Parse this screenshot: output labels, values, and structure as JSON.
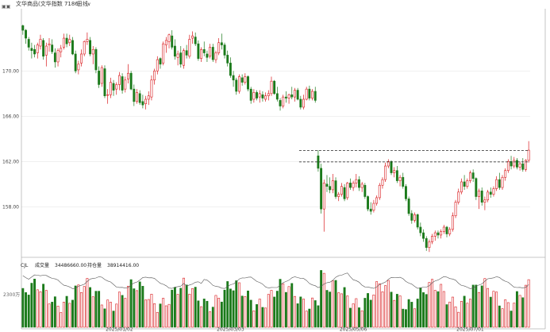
{
  "toolbar": {
    "app_icon": "chart-icon",
    "title": "文华商品(文华指数 7186)",
    "period": "日线",
    "period_icon": "chevron-down-icon"
  },
  "colors": {
    "up": "#d9191c",
    "down": "#1b7a1b",
    "grid": "#e6e6e6",
    "border": "#b5b5b5",
    "resistance": "#222222",
    "volume_avg": "#555555"
  },
  "chart_data": {
    "type": "candlestick",
    "title": "文华商品(文华指数 7186)",
    "period": "日线",
    "y_ticks": [
      "170.00",
      "166.00",
      "162.00",
      "158.00"
    ],
    "y_tick_values": [
      170,
      166,
      162,
      158
    ],
    "ylim": [
      153.6,
      175.5
    ],
    "x_ticks": [
      "2025/01/02",
      "2025/03/03",
      "2025/05/06",
      "2025/07/01"
    ],
    "grid": true,
    "resistance_levels": [
      162.98,
      161.96
    ],
    "candles": [
      [
        174.0,
        174.1,
        173.2,
        173.6
      ],
      [
        173.6,
        173.7,
        172.4,
        172.9
      ],
      [
        172.8,
        173.0,
        171.8,
        172.1
      ],
      [
        172.0,
        172.5,
        171.1,
        171.8
      ],
      [
        171.9,
        172.3,
        171.2,
        171.5
      ],
      [
        171.6,
        172.5,
        171.1,
        172.3
      ],
      [
        172.2,
        173.2,
        171.9,
        172.8
      ],
      [
        172.7,
        172.9,
        171.0,
        171.3
      ],
      [
        171.4,
        172.5,
        170.4,
        172.2
      ],
      [
        172.3,
        172.9,
        171.7,
        172.4
      ],
      [
        172.3,
        172.8,
        171.5,
        171.7
      ],
      [
        171.6,
        172.0,
        170.3,
        170.8
      ],
      [
        170.8,
        172.0,
        170.4,
        171.8
      ],
      [
        171.7,
        172.3,
        171.2,
        172.0
      ],
      [
        172.1,
        173.3,
        171.9,
        172.9
      ],
      [
        172.9,
        173.3,
        172.1,
        172.4
      ],
      [
        172.5,
        173.2,
        172.2,
        172.8
      ],
      [
        172.7,
        173.0,
        171.4,
        171.5
      ],
      [
        171.5,
        171.8,
        169.8,
        170.0
      ],
      [
        170.1,
        170.9,
        169.7,
        170.6
      ],
      [
        170.7,
        171.9,
        170.4,
        171.5
      ],
      [
        171.5,
        172.7,
        171.3,
        172.6
      ],
      [
        172.6,
        173.4,
        172.3,
        172.8
      ],
      [
        172.7,
        173.0,
        171.3,
        171.5
      ],
      [
        171.5,
        172.2,
        170.6,
        171.9
      ],
      [
        171.9,
        172.1,
        169.8,
        170.1
      ],
      [
        170.0,
        170.4,
        168.5,
        168.8
      ],
      [
        168.9,
        170.5,
        168.6,
        170.3
      ],
      [
        170.2,
        170.5,
        167.6,
        167.8
      ],
      [
        167.9,
        168.4,
        167.1,
        167.9
      ],
      [
        167.9,
        169.4,
        167.6,
        169.0
      ],
      [
        168.9,
        169.2,
        167.8,
        168.3
      ],
      [
        168.4,
        169.0,
        167.9,
        168.8
      ],
      [
        168.8,
        169.9,
        168.3,
        169.6
      ],
      [
        169.5,
        169.8,
        168.0,
        168.3
      ],
      [
        168.4,
        169.5,
        168.1,
        169.2
      ],
      [
        169.3,
        170.6,
        168.9,
        169.8
      ],
      [
        169.8,
        170.0,
        168.3,
        168.4
      ],
      [
        168.4,
        168.8,
        166.9,
        167.3
      ],
      [
        167.3,
        168.4,
        167.1,
        168.1
      ],
      [
        168.0,
        168.3,
        167.0,
        167.2
      ],
      [
        167.3,
        167.9,
        166.7,
        167.0
      ],
      [
        167.1,
        167.8,
        166.6,
        167.5
      ],
      [
        167.5,
        168.2,
        167.0,
        167.8
      ],
      [
        167.7,
        169.6,
        167.4,
        169.2
      ],
      [
        169.2,
        170.2,
        168.8,
        170.0
      ],
      [
        170.0,
        171.3,
        169.7,
        171.0
      ],
      [
        171.1,
        171.2,
        170.2,
        170.6
      ],
      [
        170.7,
        172.6,
        170.5,
        172.4
      ],
      [
        172.3,
        173.0,
        171.6,
        172.7
      ],
      [
        172.6,
        173.3,
        172.0,
        173.2
      ],
      [
        173.1,
        173.6,
        171.9,
        172.1
      ],
      [
        172.2,
        172.8,
        171.0,
        171.3
      ],
      [
        171.2,
        171.8,
        170.5,
        171.5
      ],
      [
        171.6,
        172.2,
        170.3,
        170.6
      ],
      [
        170.5,
        172.0,
        170.2,
        171.8
      ],
      [
        171.8,
        172.3,
        171.1,
        171.4
      ],
      [
        171.3,
        173.2,
        171.1,
        172.8
      ],
      [
        172.9,
        173.5,
        172.4,
        173.1
      ],
      [
        173.0,
        173.4,
        172.2,
        172.4
      ],
      [
        172.4,
        172.7,
        170.9,
        171.1
      ],
      [
        171.1,
        172.1,
        170.8,
        171.9
      ],
      [
        171.9,
        172.6,
        171.3,
        171.6
      ],
      [
        171.5,
        171.8,
        170.8,
        171.2
      ],
      [
        171.3,
        172.4,
        171.1,
        172.1
      ],
      [
        172.1,
        172.4,
        170.8,
        171.0
      ],
      [
        171.0,
        171.8,
        170.7,
        171.6
      ],
      [
        171.6,
        172.9,
        171.4,
        172.5
      ],
      [
        172.5,
        173.3,
        171.9,
        172.3
      ],
      [
        172.3,
        172.5,
        171.1,
        171.4
      ],
      [
        171.4,
        171.8,
        170.4,
        170.7
      ],
      [
        170.7,
        171.2,
        169.4,
        169.6
      ],
      [
        169.6,
        170.0,
        168.6,
        169.2
      ],
      [
        169.2,
        169.4,
        167.9,
        168.2
      ],
      [
        168.2,
        169.7,
        168.0,
        169.5
      ],
      [
        169.4,
        169.7,
        168.7,
        169.0
      ],
      [
        169.0,
        169.8,
        168.8,
        169.5
      ],
      [
        169.5,
        169.6,
        168.2,
        168.4
      ],
      [
        168.4,
        168.6,
        167.1,
        167.4
      ],
      [
        167.5,
        168.4,
        167.2,
        168.1
      ],
      [
        168.1,
        168.3,
        167.4,
        167.6
      ],
      [
        167.7,
        168.3,
        167.2,
        168.0
      ],
      [
        167.9,
        168.2,
        167.3,
        167.6
      ],
      [
        167.5,
        168.1,
        167.3,
        167.8
      ],
      [
        167.8,
        168.3,
        167.4,
        168.0
      ],
      [
        168.0,
        169.5,
        167.8,
        169.1
      ],
      [
        169.1,
        169.2,
        167.9,
        168.0
      ],
      [
        168.0,
        168.6,
        167.3,
        167.5
      ],
      [
        167.4,
        167.6,
        166.5,
        166.9
      ],
      [
        166.9,
        167.9,
        166.7,
        167.7
      ],
      [
        167.7,
        168.2,
        167.2,
        167.6
      ],
      [
        167.6,
        168.0,
        167.1,
        167.9
      ],
      [
        167.9,
        168.6,
        167.5,
        167.7
      ],
      [
        167.7,
        168.5,
        167.3,
        168.3
      ],
      [
        168.3,
        168.5,
        167.4,
        167.5
      ],
      [
        167.5,
        167.8,
        166.6,
        166.8
      ],
      [
        166.8,
        167.9,
        166.6,
        167.5
      ],
      [
        167.5,
        168.6,
        167.4,
        168.4
      ],
      [
        168.4,
        168.7,
        167.4,
        167.6
      ],
      [
        167.6,
        168.4,
        167.4,
        168.2
      ],
      [
        168.2,
        168.6,
        167.2,
        167.4
      ],
      [
        162.5,
        163.0,
        161.1,
        161.4
      ],
      [
        161.4,
        161.8,
        157.4,
        157.8
      ],
      [
        157.8,
        160.4,
        155.8,
        160.1
      ],
      [
        160.0,
        160.8,
        159.3,
        159.8
      ],
      [
        159.8,
        160.6,
        159.2,
        159.5
      ],
      [
        159.5,
        160.9,
        159.2,
        160.3
      ],
      [
        160.3,
        160.6,
        158.7,
        158.9
      ],
      [
        158.9,
        159.3,
        158.5,
        159.1
      ],
      [
        159.1,
        160.1,
        158.9,
        159.8
      ],
      [
        159.7,
        160.0,
        158.5,
        158.7
      ],
      [
        158.8,
        160.2,
        158.6,
        160.1
      ],
      [
        160.1,
        160.5,
        159.5,
        159.7
      ],
      [
        159.7,
        160.3,
        159.4,
        160.1
      ],
      [
        160.1,
        160.9,
        159.7,
        160.4
      ],
      [
        160.4,
        160.7,
        159.4,
        159.7
      ],
      [
        159.7,
        160.2,
        159.3,
        160.0
      ],
      [
        159.9,
        160.1,
        158.7,
        158.9
      ],
      [
        158.9,
        159.0,
        157.6,
        157.8
      ],
      [
        157.8,
        158.4,
        157.3,
        157.6
      ],
      [
        157.7,
        158.6,
        157.5,
        158.3
      ],
      [
        158.3,
        159.0,
        158.1,
        158.8
      ],
      [
        158.8,
        160.1,
        158.6,
        159.9
      ],
      [
        159.9,
        160.6,
        159.6,
        160.4
      ],
      [
        160.4,
        161.9,
        160.2,
        161.6
      ],
      [
        161.6,
        162.2,
        161.4,
        162.0
      ],
      [
        162.0,
        162.1,
        160.8,
        161.0
      ],
      [
        161.0,
        161.5,
        160.6,
        161.2
      ],
      [
        161.2,
        161.6,
        160.1,
        160.3
      ],
      [
        160.3,
        160.8,
        159.8,
        160.6
      ],
      [
        160.6,
        161.0,
        159.6,
        159.8
      ],
      [
        159.8,
        160.0,
        158.5,
        158.7
      ],
      [
        158.7,
        158.9,
        157.2,
        157.4
      ],
      [
        157.4,
        157.7,
        156.5,
        156.8
      ],
      [
        156.8,
        157.5,
        156.6,
        157.3
      ],
      [
        157.3,
        157.4,
        156.0,
        156.2
      ],
      [
        156.2,
        156.6,
        155.4,
        155.7
      ],
      [
        155.7,
        156.0,
        154.9,
        155.2
      ],
      [
        155.2,
        155.4,
        154.1,
        154.4
      ],
      [
        154.4,
        155.1,
        154.0,
        154.9
      ],
      [
        154.9,
        155.6,
        154.7,
        155.4
      ],
      [
        155.4,
        155.9,
        155.0,
        155.7
      ],
      [
        155.7,
        155.9,
        155.2,
        155.5
      ],
      [
        155.5,
        156.0,
        155.2,
        155.8
      ],
      [
        155.8,
        156.4,
        155.6,
        156.2
      ],
      [
        156.2,
        156.3,
        155.3,
        155.6
      ],
      [
        155.6,
        156.2,
        155.4,
        156.0
      ],
      [
        156.0,
        157.5,
        155.8,
        157.2
      ],
      [
        157.2,
        158.6,
        157.0,
        158.4
      ],
      [
        158.4,
        159.6,
        158.2,
        159.3
      ],
      [
        159.3,
        160.5,
        159.1,
        160.2
      ],
      [
        160.2,
        160.8,
        159.5,
        159.8
      ],
      [
        159.8,
        160.5,
        159.6,
        160.3
      ],
      [
        160.3,
        161.2,
        160.1,
        161.0
      ],
      [
        161.0,
        161.3,
        160.2,
        160.5
      ],
      [
        160.5,
        160.6,
        158.6,
        158.9
      ],
      [
        158.9,
        159.6,
        157.8,
        159.4
      ],
      [
        159.4,
        159.7,
        158.1,
        158.4
      ],
      [
        158.4,
        158.9,
        157.7,
        158.6
      ],
      [
        158.6,
        159.5,
        158.4,
        159.3
      ],
      [
        159.3,
        159.7,
        158.8,
        159.1
      ],
      [
        159.1,
        159.8,
        158.9,
        159.6
      ],
      [
        159.6,
        160.7,
        159.4,
        160.4
      ],
      [
        160.4,
        161.0,
        159.5,
        159.7
      ],
      [
        159.7,
        160.8,
        159.5,
        160.6
      ],
      [
        160.6,
        161.4,
        160.3,
        161.2
      ],
      [
        161.2,
        162.2,
        161.0,
        162.0
      ],
      [
        162.0,
        162.5,
        161.3,
        161.6
      ],
      [
        161.6,
        162.4,
        161.4,
        162.1
      ],
      [
        162.1,
        162.3,
        161.3,
        161.5
      ],
      [
        161.5,
        162.0,
        161.2,
        161.8
      ],
      [
        161.8,
        162.3,
        161.1,
        161.3
      ],
      [
        161.3,
        162.2,
        161.1,
        162.1
      ],
      [
        162.1,
        163.8,
        161.9,
        163.0
      ]
    ],
    "volume_panel": {
      "indicator": "CJL",
      "labels": [
        "成交量",
        "持仓量"
      ],
      "values": [
        "34486660.00",
        "38914416.00"
      ],
      "tick_label": "2300万"
    }
  }
}
